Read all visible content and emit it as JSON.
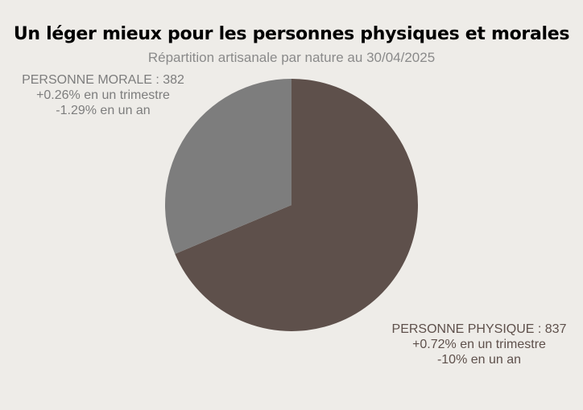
{
  "title": "Un léger mieux pour les personnes physiques et morales",
  "subtitle": "Répartition artisanale par nature au 30/04/2025",
  "chart_data": {
    "type": "pie",
    "title": "Un léger mieux pour les personnes physiques et morales",
    "subtitle": "Répartition artisanale par nature au 30/04/2025",
    "slices": [
      {
        "name": "PERSONNE PHYSIQUE",
        "value": 837,
        "color": "#5e504b",
        "label_line1": "PERSONNE PHYSIQUE : 837",
        "label_line2": "+0.72% en un trimestre",
        "label_line3": "-10% en un an"
      },
      {
        "name": "PERSONNE MORALE",
        "value": 382,
        "color": "#7d7d7d",
        "label_line1": "PERSONNE MORALE : 382",
        "label_line2": "+0.26% en un trimestre",
        "label_line3": "-1.29% en un an"
      }
    ]
  }
}
